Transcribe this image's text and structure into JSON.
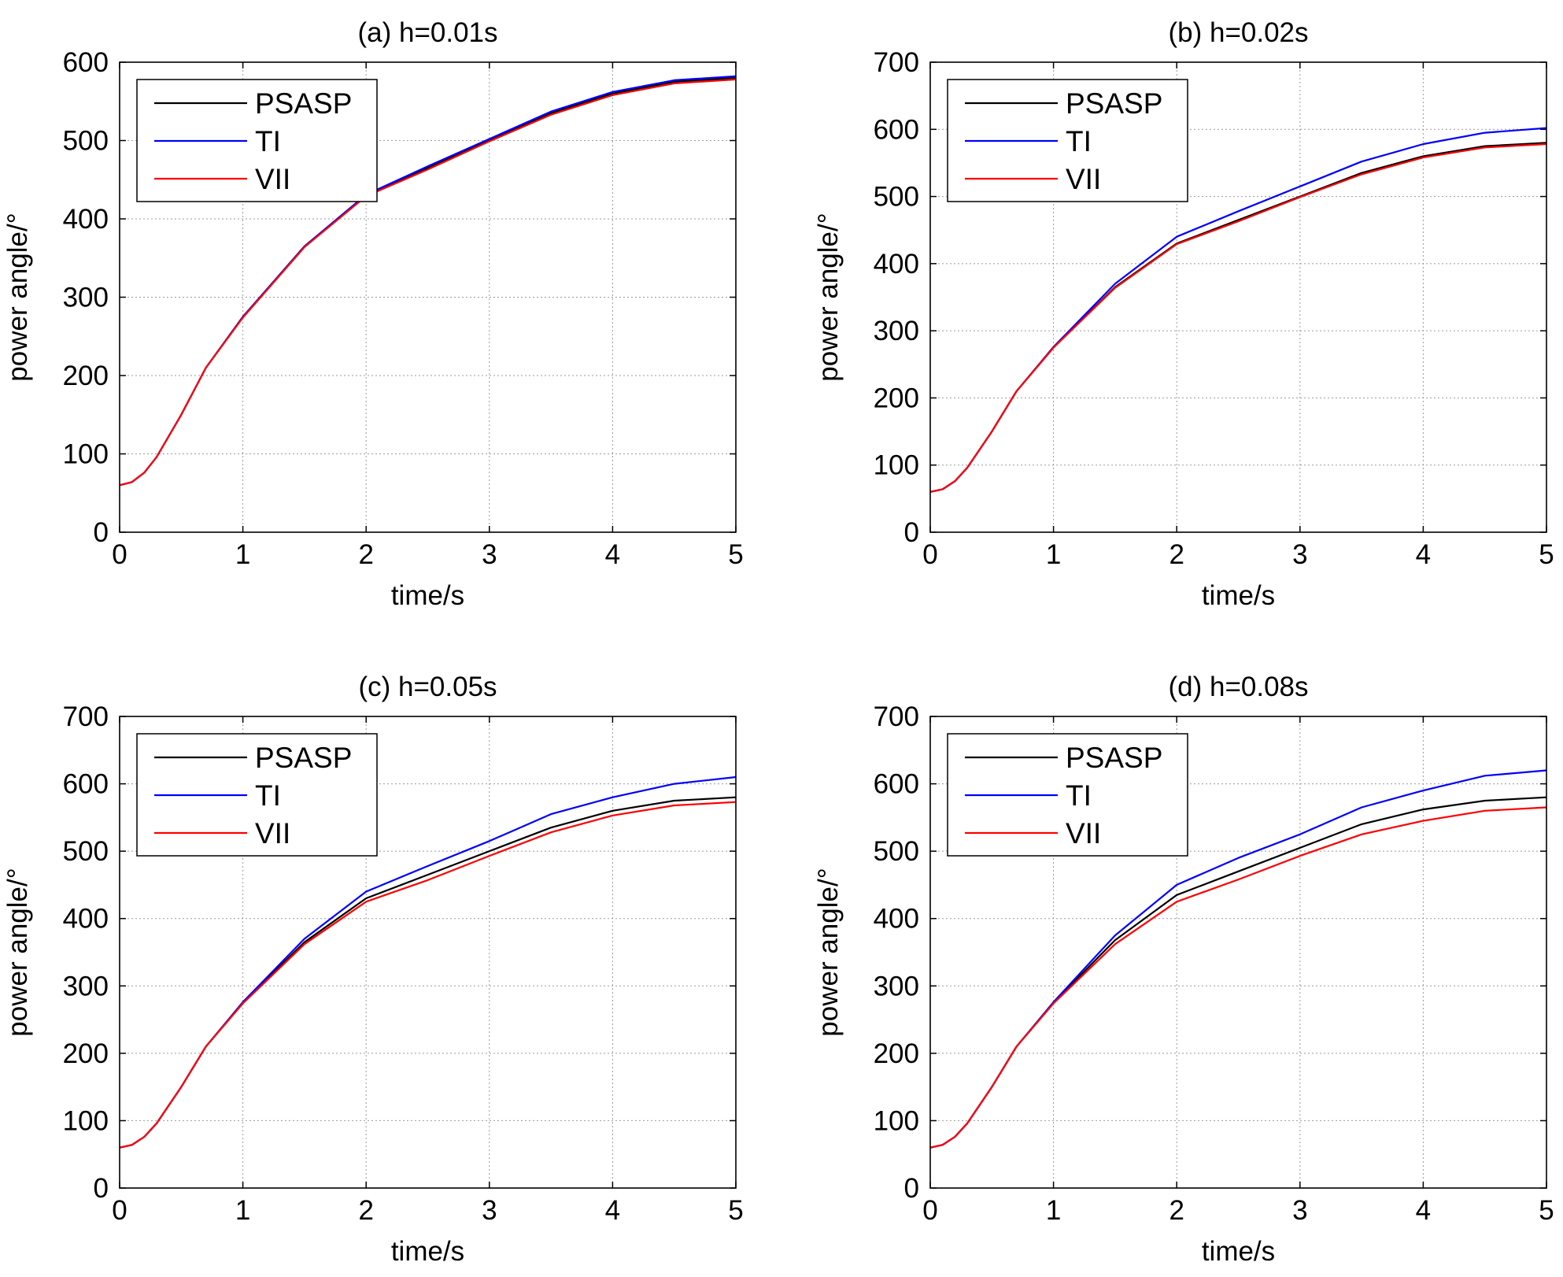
{
  "chart_data": [
    {
      "type": "line",
      "title": "(a) h=0.01s",
      "xlabel": "time/s",
      "ylabel": "power angle/°",
      "xlim": [
        0,
        5
      ],
      "ylim": [
        0,
        600
      ],
      "xticks": [
        "0",
        "1",
        "2",
        "3",
        "4",
        "5"
      ],
      "yticks": [
        "0",
        "100",
        "200",
        "300",
        "400",
        "500",
        "600"
      ],
      "grid": true,
      "legend": "top-left",
      "x": [
        0,
        0.1,
        0.2,
        0.3,
        0.5,
        0.7,
        1.0,
        1.5,
        2.0,
        2.5,
        3.0,
        3.5,
        4.0,
        4.5,
        5.0
      ],
      "series": [
        {
          "name": "PSASP",
          "color": "#000000",
          "values": [
            60,
            64,
            76,
            96,
            150,
            210,
            275,
            365,
            430,
            465,
            500,
            535,
            560,
            575,
            580
          ]
        },
        {
          "name": "TI",
          "color": "#0000ff",
          "values": [
            60,
            64,
            76,
            96,
            150,
            210,
            275,
            365,
            431,
            467,
            502,
            537,
            562,
            577,
            582
          ]
        },
        {
          "name": "VII",
          "color": "#ff0000",
          "values": [
            60,
            64,
            76,
            96,
            150,
            210,
            274,
            364,
            429,
            463,
            499,
            533,
            558,
            573,
            578
          ]
        }
      ]
    },
    {
      "type": "line",
      "title": "(b) h=0.02s",
      "xlabel": "time/s",
      "ylabel": "power angle/°",
      "xlim": [
        0,
        5
      ],
      "ylim": [
        0,
        700
      ],
      "xticks": [
        "0",
        "1",
        "2",
        "3",
        "4",
        "5"
      ],
      "yticks": [
        "0",
        "100",
        "200",
        "300",
        "400",
        "500",
        "600",
        "700"
      ],
      "grid": true,
      "legend": "top-left",
      "x": [
        0,
        0.1,
        0.2,
        0.3,
        0.5,
        0.7,
        1.0,
        1.5,
        2.0,
        2.5,
        3.0,
        3.5,
        4.0,
        4.5,
        5.0
      ],
      "series": [
        {
          "name": "PSASP",
          "color": "#000000",
          "values": [
            60,
            64,
            76,
            96,
            150,
            210,
            275,
            365,
            430,
            465,
            500,
            535,
            560,
            575,
            580
          ]
        },
        {
          "name": "TI",
          "color": "#0000ff",
          "values": [
            60,
            64,
            76,
            96,
            150,
            210,
            276,
            370,
            440,
            478,
            515,
            552,
            578,
            595,
            602
          ]
        },
        {
          "name": "VII",
          "color": "#ff0000",
          "values": [
            60,
            64,
            76,
            96,
            150,
            210,
            275,
            364,
            429,
            463,
            499,
            533,
            558,
            573,
            578
          ]
        }
      ]
    },
    {
      "type": "line",
      "title": "(c) h=0.05s",
      "xlabel": "time/s",
      "ylabel": "power angle/°",
      "xlim": [
        0,
        5
      ],
      "ylim": [
        0,
        700
      ],
      "xticks": [
        "0",
        "1",
        "2",
        "3",
        "4",
        "5"
      ],
      "yticks": [
        "0",
        "100",
        "200",
        "300",
        "400",
        "500",
        "600",
        "700"
      ],
      "grid": true,
      "legend": "top-left",
      "x": [
        0,
        0.1,
        0.2,
        0.3,
        0.5,
        0.7,
        1.0,
        1.5,
        2.0,
        2.5,
        3.0,
        3.5,
        4.0,
        4.5,
        5.0
      ],
      "series": [
        {
          "name": "PSASP",
          "color": "#000000",
          "values": [
            60,
            64,
            76,
            96,
            150,
            210,
            275,
            365,
            430,
            465,
            500,
            535,
            560,
            575,
            580
          ]
        },
        {
          "name": "TI",
          "color": "#0000ff",
          "values": [
            60,
            64,
            76,
            96,
            150,
            210,
            276,
            370,
            440,
            478,
            515,
            555,
            580,
            600,
            610
          ]
        },
        {
          "name": "VII",
          "color": "#ff0000",
          "values": [
            60,
            64,
            76,
            96,
            150,
            210,
            274,
            362,
            425,
            457,
            493,
            528,
            553,
            568,
            573
          ]
        }
      ]
    },
    {
      "type": "line",
      "title": "(d) h=0.08s",
      "xlabel": "time/s",
      "ylabel": "power angle/°",
      "xlim": [
        0,
        5
      ],
      "ylim": [
        0,
        700
      ],
      "xticks": [
        "0",
        "1",
        "2",
        "3",
        "4",
        "5"
      ],
      "yticks": [
        "0",
        "100",
        "200",
        "300",
        "400",
        "500",
        "600",
        "700"
      ],
      "grid": true,
      "legend": "top-left",
      "x": [
        0,
        0.1,
        0.2,
        0.3,
        0.5,
        0.7,
        1.0,
        1.5,
        2.0,
        2.5,
        3.0,
        3.5,
        4.0,
        4.5,
        5.0
      ],
      "series": [
        {
          "name": "PSASP",
          "color": "#000000",
          "values": [
            60,
            64,
            76,
            96,
            150,
            210,
            275,
            368,
            435,
            470,
            505,
            540,
            562,
            575,
            580
          ]
        },
        {
          "name": "TI",
          "color": "#0000ff",
          "values": [
            60,
            64,
            76,
            96,
            150,
            210,
            276,
            375,
            450,
            490,
            525,
            565,
            590,
            612,
            620
          ]
        },
        {
          "name": "VII",
          "color": "#ff0000",
          "values": [
            60,
            64,
            76,
            96,
            150,
            210,
            274,
            362,
            425,
            458,
            493,
            525,
            545,
            560,
            565
          ]
        }
      ]
    }
  ]
}
